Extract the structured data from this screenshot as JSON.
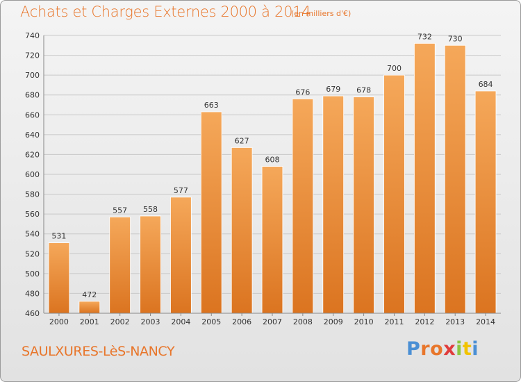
{
  "header": {
    "title": "Achats et Charges Externes 2000 à 2014",
    "subtitle": "(en milliers d'€)"
  },
  "footer": {
    "commune": "SAULXURES-LèS-NANCY",
    "logo_letters": [
      "P",
      "r",
      "o",
      "x",
      "i",
      "t",
      "i"
    ],
    "logo_colors": [
      "#4a8fd4",
      "#e8762b",
      "#e8762b",
      "#e03c3c",
      "#8cc63f",
      "#f2c300",
      "#4a8fd4"
    ]
  },
  "colors": {
    "accent": "#e8762b",
    "bar_top": "#f5a85a",
    "bar_bottom": "#db7420",
    "grid": "#c8c8c8",
    "axis_text": "#333333"
  },
  "chart_data": {
    "type": "bar",
    "title": "Achats et Charges Externes 2000 à 2014",
    "subtitle": "(en milliers d'€)",
    "categories": [
      "2000",
      "2001",
      "2002",
      "2003",
      "2004",
      "2005",
      "2006",
      "2007",
      "2008",
      "2009",
      "2010",
      "2011",
      "2012",
      "2013",
      "2014"
    ],
    "values": [
      531,
      472,
      557,
      558,
      577,
      663,
      627,
      608,
      676,
      679,
      678,
      700,
      732,
      730,
      684
    ],
    "ylim": [
      460,
      740
    ],
    "yticks": [
      460,
      480,
      500,
      520,
      540,
      560,
      580,
      600,
      620,
      640,
      660,
      680,
      700,
      720,
      740
    ],
    "grid": true,
    "legend": "none"
  }
}
